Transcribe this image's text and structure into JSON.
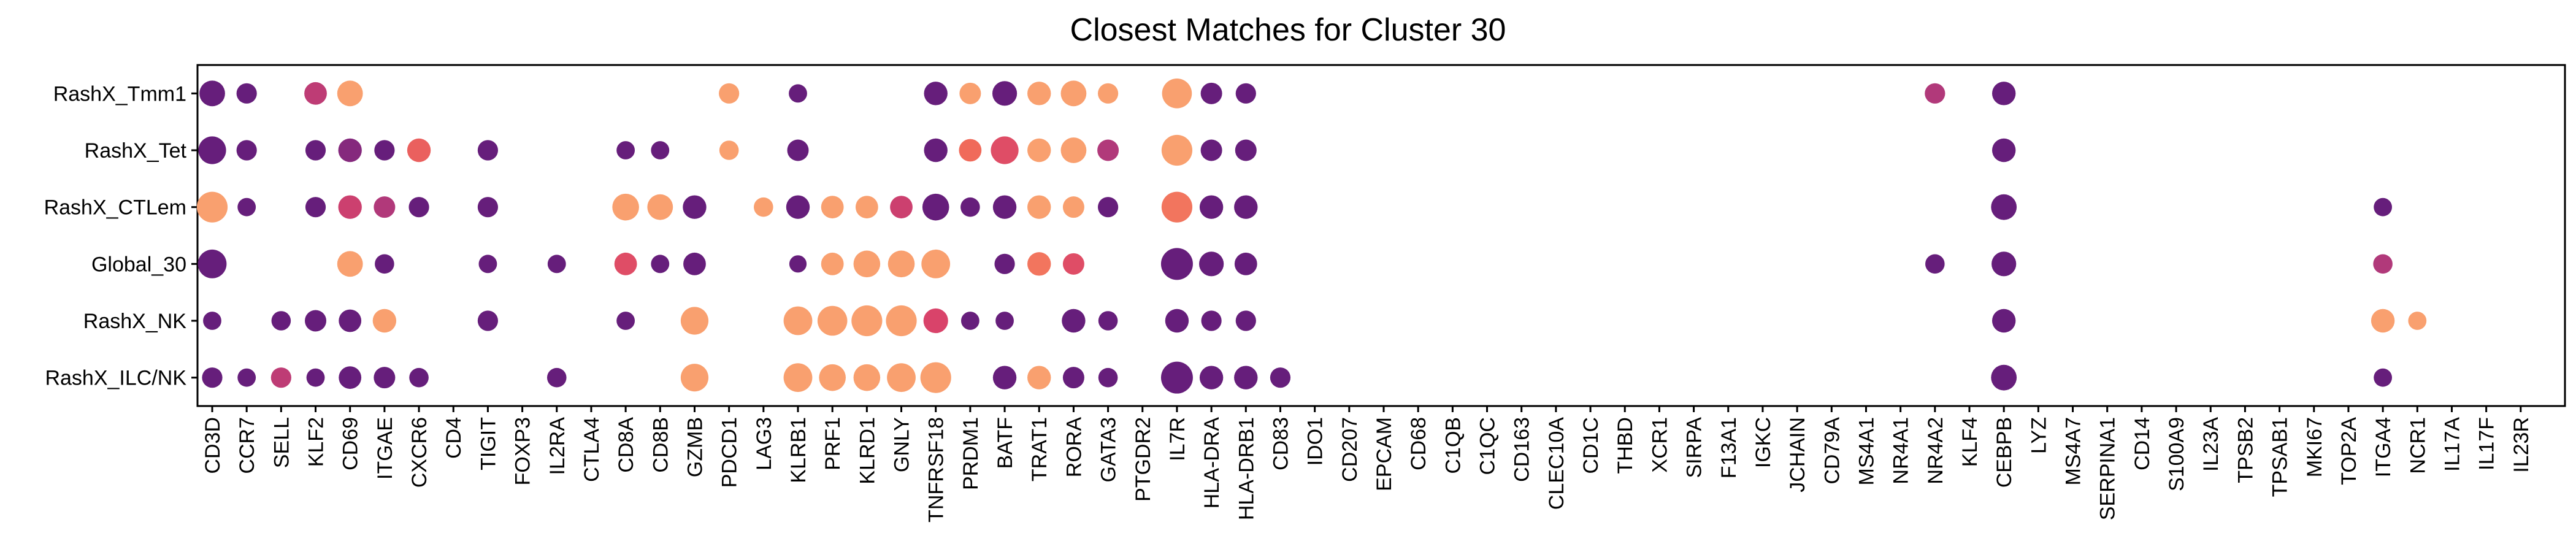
{
  "chart_data": {
    "type": "dotplot",
    "title": "Closest Matches for Cluster 30",
    "xlabel": "",
    "ylabel": "",
    "grid": false,
    "legend": "none",
    "colors": {
      "low": "#5c1a7a",
      "mid_low": "#a3357f",
      "mid": "#d9436a",
      "mid_high": "#f06a5a",
      "high": "#f9a06f"
    },
    "genes": [
      "CD3D",
      "CCR7",
      "SELL",
      "KLF2",
      "CD69",
      "ITGAE",
      "CXCR6",
      "CD4",
      "TIGIT",
      "FOXP3",
      "IL2RA",
      "CTLA4",
      "CD8A",
      "CD8B",
      "GZMB",
      "PDCD1",
      "LAG3",
      "KLRB1",
      "PRF1",
      "KLRD1",
      "GNLY",
      "TNFRSF18",
      "PRDM1",
      "BATF",
      "TRAT1",
      "RORA",
      "GATA3",
      "PTGDR2",
      "IL7R",
      "HLA-DRA",
      "HLA-DRB1",
      "CD83",
      "IDO1",
      "CD207",
      "EPCAM",
      "CD68",
      "C1QB",
      "C1QC",
      "CD163",
      "CLEC10A",
      "CD1C",
      "THBD",
      "XCR1",
      "SIRPA",
      "F13A1",
      "IGKC",
      "JCHAIN",
      "CD79A",
      "MS4A1",
      "NR4A1",
      "NR4A2",
      "KLF4",
      "CEBPB",
      "LYZ",
      "MS4A7",
      "SERPINA1",
      "CD14",
      "S100A9",
      "IL23A",
      "TPSB2",
      "TPSAB1",
      "MKI67",
      "TOP2A",
      "ITGA4",
      "NCR1",
      "IL17A",
      "IL17F",
      "IL23R"
    ],
    "clusters": [
      "RashX_Tmm1",
      "RashX_Tet",
      "RashX_CTLem",
      "Global_30",
      "RashX_NK",
      "RashX_ILC/NK"
    ],
    "points": [
      {
        "cluster": "RashX_Tmm1",
        "gene": "CD3D",
        "size": 0.7,
        "expr": 0.05
      },
      {
        "cluster": "RashX_Tmm1",
        "gene": "CCR7",
        "size": 0.45,
        "expr": 0.05
      },
      {
        "cluster": "RashX_Tmm1",
        "gene": "KLF2",
        "size": 0.55,
        "expr": 0.45
      },
      {
        "cluster": "RashX_Tmm1",
        "gene": "CD69",
        "size": 0.7,
        "expr": 1.0
      },
      {
        "cluster": "RashX_Tmm1",
        "gene": "PDCD1",
        "size": 0.45,
        "expr": 1.0
      },
      {
        "cluster": "RashX_Tmm1",
        "gene": "KLRB1",
        "size": 0.35,
        "expr": 0.05
      },
      {
        "cluster": "RashX_Tmm1",
        "gene": "TNFRSF18",
        "size": 0.6,
        "expr": 0.05
      },
      {
        "cluster": "RashX_Tmm1",
        "gene": "PRDM1",
        "size": 0.5,
        "expr": 1.0
      },
      {
        "cluster": "RashX_Tmm1",
        "gene": "BATF",
        "size": 0.65,
        "expr": 0.05
      },
      {
        "cluster": "RashX_Tmm1",
        "gene": "TRAT1",
        "size": 0.6,
        "expr": 1.0
      },
      {
        "cluster": "RashX_Tmm1",
        "gene": "RORA",
        "size": 0.7,
        "expr": 1.0
      },
      {
        "cluster": "RashX_Tmm1",
        "gene": "GATA3",
        "size": 0.45,
        "expr": 1.0
      },
      {
        "cluster": "RashX_Tmm1",
        "gene": "IL7R",
        "size": 0.9,
        "expr": 1.0
      },
      {
        "cluster": "RashX_Tmm1",
        "gene": "HLA-DRA",
        "size": 0.5,
        "expr": 0.05
      },
      {
        "cluster": "RashX_Tmm1",
        "gene": "HLA-DRB1",
        "size": 0.45,
        "expr": 0.05
      },
      {
        "cluster": "RashX_Tmm1",
        "gene": "NR4A2",
        "size": 0.45,
        "expr": 0.4
      },
      {
        "cluster": "RashX_Tmm1",
        "gene": "CEBPB",
        "size": 0.6,
        "expr": 0.05
      },
      {
        "cluster": "RashX_Tet",
        "gene": "CD3D",
        "size": 0.8,
        "expr": 0.05
      },
      {
        "cluster": "RashX_Tet",
        "gene": "CCR7",
        "size": 0.45,
        "expr": 0.05
      },
      {
        "cluster": "RashX_Tet",
        "gene": "KLF2",
        "size": 0.45,
        "expr": 0.05
      },
      {
        "cluster": "RashX_Tet",
        "gene": "CD69",
        "size": 0.6,
        "expr": 0.2
      },
      {
        "cluster": "RashX_Tet",
        "gene": "ITGAE",
        "size": 0.45,
        "expr": 0.05
      },
      {
        "cluster": "RashX_Tet",
        "gene": "CXCR6",
        "size": 0.6,
        "expr": 0.7
      },
      {
        "cluster": "RashX_Tet",
        "gene": "TIGIT",
        "size": 0.45,
        "expr": 0.05
      },
      {
        "cluster": "RashX_Tet",
        "gene": "CD8A",
        "size": 0.35,
        "expr": 0.05
      },
      {
        "cluster": "RashX_Tet",
        "gene": "CD8B",
        "size": 0.35,
        "expr": 0.05
      },
      {
        "cluster": "RashX_Tet",
        "gene": "PDCD1",
        "size": 0.4,
        "expr": 1.0
      },
      {
        "cluster": "RashX_Tet",
        "gene": "KLRB1",
        "size": 0.5,
        "expr": 0.05
      },
      {
        "cluster": "RashX_Tet",
        "gene": "TNFRSF18",
        "size": 0.6,
        "expr": 0.05
      },
      {
        "cluster": "RashX_Tet",
        "gene": "PRDM1",
        "size": 0.55,
        "expr": 0.75
      },
      {
        "cluster": "RashX_Tet",
        "gene": "BATF",
        "size": 0.8,
        "expr": 0.6
      },
      {
        "cluster": "RashX_Tet",
        "gene": "TRAT1",
        "size": 0.6,
        "expr": 1.0
      },
      {
        "cluster": "RashX_Tet",
        "gene": "RORA",
        "size": 0.7,
        "expr": 1.0
      },
      {
        "cluster": "RashX_Tet",
        "gene": "GATA3",
        "size": 0.5,
        "expr": 0.4
      },
      {
        "cluster": "RashX_Tet",
        "gene": "IL7R",
        "size": 0.95,
        "expr": 1.0
      },
      {
        "cluster": "RashX_Tet",
        "gene": "HLA-DRA",
        "size": 0.5,
        "expr": 0.05
      },
      {
        "cluster": "RashX_Tet",
        "gene": "HLA-DRB1",
        "size": 0.5,
        "expr": 0.05
      },
      {
        "cluster": "RashX_Tet",
        "gene": "CEBPB",
        "size": 0.6,
        "expr": 0.05
      },
      {
        "cluster": "RashX_CTLem",
        "gene": "CD3D",
        "size": 0.95,
        "expr": 1.0
      },
      {
        "cluster": "RashX_CTLem",
        "gene": "CCR7",
        "size": 0.35,
        "expr": 0.05
      },
      {
        "cluster": "RashX_CTLem",
        "gene": "KLF2",
        "size": 0.45,
        "expr": 0.05
      },
      {
        "cluster": "RashX_CTLem",
        "gene": "CD69",
        "size": 0.6,
        "expr": 0.5
      },
      {
        "cluster": "RashX_CTLem",
        "gene": "ITGAE",
        "size": 0.5,
        "expr": 0.4
      },
      {
        "cluster": "RashX_CTLem",
        "gene": "CXCR6",
        "size": 0.45,
        "expr": 0.05
      },
      {
        "cluster": "RashX_CTLem",
        "gene": "TIGIT",
        "size": 0.45,
        "expr": 0.05
      },
      {
        "cluster": "RashX_CTLem",
        "gene": "CD8A",
        "size": 0.75,
        "expr": 1.0
      },
      {
        "cluster": "RashX_CTLem",
        "gene": "CD8B",
        "size": 0.7,
        "expr": 1.0
      },
      {
        "cluster": "RashX_CTLem",
        "gene": "GZMB",
        "size": 0.6,
        "expr": 0.05
      },
      {
        "cluster": "RashX_CTLem",
        "gene": "LAG3",
        "size": 0.4,
        "expr": 1.0
      },
      {
        "cluster": "RashX_CTLem",
        "gene": "KLRB1",
        "size": 0.6,
        "expr": 0.05
      },
      {
        "cluster": "RashX_CTLem",
        "gene": "PRF1",
        "size": 0.55,
        "expr": 1.0
      },
      {
        "cluster": "RashX_CTLem",
        "gene": "KLRD1",
        "size": 0.55,
        "expr": 1.0
      },
      {
        "cluster": "RashX_CTLem",
        "gene": "GNLY",
        "size": 0.55,
        "expr": 0.5
      },
      {
        "cluster": "RashX_CTLem",
        "gene": "TNFRSF18",
        "size": 0.75,
        "expr": 0.05
      },
      {
        "cluster": "RashX_CTLem",
        "gene": "PRDM1",
        "size": 0.4,
        "expr": 0.05
      },
      {
        "cluster": "RashX_CTLem",
        "gene": "BATF",
        "size": 0.6,
        "expr": 0.05
      },
      {
        "cluster": "RashX_CTLem",
        "gene": "TRAT1",
        "size": 0.6,
        "expr": 1.0
      },
      {
        "cluster": "RashX_CTLem",
        "gene": "RORA",
        "size": 0.5,
        "expr": 1.0
      },
      {
        "cluster": "RashX_CTLem",
        "gene": "GATA3",
        "size": 0.45,
        "expr": 0.05
      },
      {
        "cluster": "RashX_CTLem",
        "gene": "IL7R",
        "size": 0.95,
        "expr": 0.8
      },
      {
        "cluster": "RashX_CTLem",
        "gene": "HLA-DRA",
        "size": 0.6,
        "expr": 0.05
      },
      {
        "cluster": "RashX_CTLem",
        "gene": "HLA-DRB1",
        "size": 0.6,
        "expr": 0.05
      },
      {
        "cluster": "RashX_CTLem",
        "gene": "CEBPB",
        "size": 0.7,
        "expr": 0.05
      },
      {
        "cluster": "RashX_CTLem",
        "gene": "ITGA4",
        "size": 0.35,
        "expr": 0.05
      },
      {
        "cluster": "Global_30",
        "gene": "CD3D",
        "size": 0.85,
        "expr": 0.05
      },
      {
        "cluster": "Global_30",
        "gene": "CD69",
        "size": 0.7,
        "expr": 1.0
      },
      {
        "cluster": "Global_30",
        "gene": "ITGAE",
        "size": 0.4,
        "expr": 0.05
      },
      {
        "cluster": "Global_30",
        "gene": "TIGIT",
        "size": 0.35,
        "expr": 0.05
      },
      {
        "cluster": "Global_30",
        "gene": "IL2RA",
        "size": 0.35,
        "expr": 0.05
      },
      {
        "cluster": "Global_30",
        "gene": "CD8A",
        "size": 0.55,
        "expr": 0.6
      },
      {
        "cluster": "Global_30",
        "gene": "CD8B",
        "size": 0.35,
        "expr": 0.05
      },
      {
        "cluster": "Global_30",
        "gene": "GZMB",
        "size": 0.55,
        "expr": 0.05
      },
      {
        "cluster": "Global_30",
        "gene": "KLRB1",
        "size": 0.3,
        "expr": 0.05
      },
      {
        "cluster": "Global_30",
        "gene": "PRF1",
        "size": 0.55,
        "expr": 1.0
      },
      {
        "cluster": "Global_30",
        "gene": "KLRD1",
        "size": 0.75,
        "expr": 1.0
      },
      {
        "cluster": "Global_30",
        "gene": "GNLY",
        "size": 0.75,
        "expr": 1.0
      },
      {
        "cluster": "Global_30",
        "gene": "TNFRSF18",
        "size": 0.85,
        "expr": 1.0
      },
      {
        "cluster": "Global_30",
        "gene": "BATF",
        "size": 0.45,
        "expr": 0.05
      },
      {
        "cluster": "Global_30",
        "gene": "TRAT1",
        "size": 0.6,
        "expr": 0.8
      },
      {
        "cluster": "Global_30",
        "gene": "RORA",
        "size": 0.5,
        "expr": 0.6
      },
      {
        "cluster": "Global_30",
        "gene": "IL7R",
        "size": 1.0,
        "expr": 0.05
      },
      {
        "cluster": "Global_30",
        "gene": "HLA-DRA",
        "size": 0.65,
        "expr": 0.05
      },
      {
        "cluster": "Global_30",
        "gene": "HLA-DRB1",
        "size": 0.55,
        "expr": 0.05
      },
      {
        "cluster": "Global_30",
        "gene": "NR4A2",
        "size": 0.4,
        "expr": 0.05
      },
      {
        "cluster": "Global_30",
        "gene": "CEBPB",
        "size": 0.65,
        "expr": 0.05
      },
      {
        "cluster": "Global_30",
        "gene": "ITGA4",
        "size": 0.4,
        "expr": 0.4
      },
      {
        "cluster": "RashX_NK",
        "gene": "CD3D",
        "size": 0.35,
        "expr": 0.05
      },
      {
        "cluster": "RashX_NK",
        "gene": "SELL",
        "size": 0.4,
        "expr": 0.05
      },
      {
        "cluster": "RashX_NK",
        "gene": "KLF2",
        "size": 0.5,
        "expr": 0.05
      },
      {
        "cluster": "RashX_NK",
        "gene": "CD69",
        "size": 0.55,
        "expr": 0.05
      },
      {
        "cluster": "RashX_NK",
        "gene": "ITGAE",
        "size": 0.6,
        "expr": 1.0
      },
      {
        "cluster": "RashX_NK",
        "gene": "TIGIT",
        "size": 0.45,
        "expr": 0.05
      },
      {
        "cluster": "RashX_NK",
        "gene": "CD8A",
        "size": 0.35,
        "expr": 0.05
      },
      {
        "cluster": "RashX_NK",
        "gene": "GZMB",
        "size": 0.8,
        "expr": 1.0
      },
      {
        "cluster": "RashX_NK",
        "gene": "KLRB1",
        "size": 0.85,
        "expr": 1.0
      },
      {
        "cluster": "RashX_NK",
        "gene": "PRF1",
        "size": 0.9,
        "expr": 1.0
      },
      {
        "cluster": "RashX_NK",
        "gene": "KLRD1",
        "size": 0.95,
        "expr": 1.0
      },
      {
        "cluster": "RashX_NK",
        "gene": "GNLY",
        "size": 0.95,
        "expr": 1.0
      },
      {
        "cluster": "RashX_NK",
        "gene": "TNFRSF18",
        "size": 0.65,
        "expr": 0.55
      },
      {
        "cluster": "RashX_NK",
        "gene": "PRDM1",
        "size": 0.35,
        "expr": 0.05
      },
      {
        "cluster": "RashX_NK",
        "gene": "BATF",
        "size": 0.35,
        "expr": 0.05
      },
      {
        "cluster": "RashX_NK",
        "gene": "RORA",
        "size": 0.6,
        "expr": 0.05
      },
      {
        "cluster": "RashX_NK",
        "gene": "GATA3",
        "size": 0.4,
        "expr": 0.05
      },
      {
        "cluster": "RashX_NK",
        "gene": "IL7R",
        "size": 0.6,
        "expr": 0.05
      },
      {
        "cluster": "RashX_NK",
        "gene": "HLA-DRA",
        "size": 0.45,
        "expr": 0.05
      },
      {
        "cluster": "RashX_NK",
        "gene": "HLA-DRB1",
        "size": 0.45,
        "expr": 0.05
      },
      {
        "cluster": "RashX_NK",
        "gene": "CEBPB",
        "size": 0.6,
        "expr": 0.05
      },
      {
        "cluster": "RashX_NK",
        "gene": "ITGA4",
        "size": 0.6,
        "expr": 1.0
      },
      {
        "cluster": "RashX_NK",
        "gene": "NCR1",
        "size": 0.35,
        "expr": 1.0
      },
      {
        "cluster": "RashX_ILC/NK",
        "gene": "CD3D",
        "size": 0.45,
        "expr": 0.05
      },
      {
        "cluster": "RashX_ILC/NK",
        "gene": "CCR7",
        "size": 0.35,
        "expr": 0.05
      },
      {
        "cluster": "RashX_ILC/NK",
        "gene": "SELL",
        "size": 0.45,
        "expr": 0.45
      },
      {
        "cluster": "RashX_ILC/NK",
        "gene": "KLF2",
        "size": 0.35,
        "expr": 0.05
      },
      {
        "cluster": "RashX_ILC/NK",
        "gene": "CD69",
        "size": 0.55,
        "expr": 0.05
      },
      {
        "cluster": "RashX_ILC/NK",
        "gene": "ITGAE",
        "size": 0.5,
        "expr": 0.05
      },
      {
        "cluster": "RashX_ILC/NK",
        "gene": "CXCR6",
        "size": 0.4,
        "expr": 0.05
      },
      {
        "cluster": "RashX_ILC/NK",
        "gene": "IL2RA",
        "size": 0.4,
        "expr": 0.05
      },
      {
        "cluster": "RashX_ILC/NK",
        "gene": "GZMB",
        "size": 0.8,
        "expr": 1.0
      },
      {
        "cluster": "RashX_ILC/NK",
        "gene": "KLRB1",
        "size": 0.85,
        "expr": 1.0
      },
      {
        "cluster": "RashX_ILC/NK",
        "gene": "PRF1",
        "size": 0.75,
        "expr": 1.0
      },
      {
        "cluster": "RashX_ILC/NK",
        "gene": "KLRD1",
        "size": 0.75,
        "expr": 1.0
      },
      {
        "cluster": "RashX_ILC/NK",
        "gene": "GNLY",
        "size": 0.85,
        "expr": 1.0
      },
      {
        "cluster": "RashX_ILC/NK",
        "gene": "TNFRSF18",
        "size": 0.95,
        "expr": 1.0
      },
      {
        "cluster": "RashX_ILC/NK",
        "gene": "BATF",
        "size": 0.6,
        "expr": 0.05
      },
      {
        "cluster": "RashX_ILC/NK",
        "gene": "TRAT1",
        "size": 0.6,
        "expr": 1.0
      },
      {
        "cluster": "RashX_ILC/NK",
        "gene": "RORA",
        "size": 0.5,
        "expr": 0.05
      },
      {
        "cluster": "RashX_ILC/NK",
        "gene": "GATA3",
        "size": 0.4,
        "expr": 0.05
      },
      {
        "cluster": "RashX_ILC/NK",
        "gene": "IL7R",
        "size": 1.0,
        "expr": 0.05
      },
      {
        "cluster": "RashX_ILC/NK",
        "gene": "HLA-DRA",
        "size": 0.6,
        "expr": 0.05
      },
      {
        "cluster": "RashX_ILC/NK",
        "gene": "HLA-DRB1",
        "size": 0.6,
        "expr": 0.05
      },
      {
        "cluster": "RashX_ILC/NK",
        "gene": "CD83",
        "size": 0.45,
        "expr": 0.05
      },
      {
        "cluster": "RashX_ILC/NK",
        "gene": "CEBPB",
        "size": 0.7,
        "expr": 0.05
      },
      {
        "cluster": "RashX_ILC/NK",
        "gene": "ITGA4",
        "size": 0.35,
        "expr": 0.05
      }
    ]
  }
}
